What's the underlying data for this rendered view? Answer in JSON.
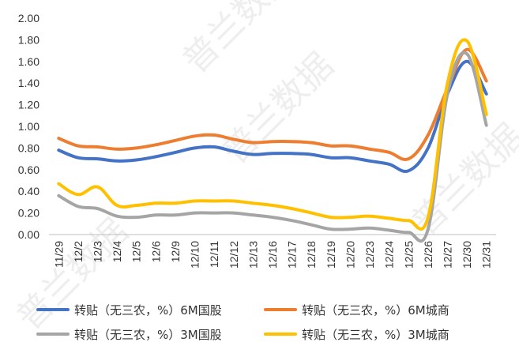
{
  "chart_data": {
    "type": "line",
    "title": "",
    "xlabel": "",
    "ylabel": "",
    "ylim": [
      0,
      2.0
    ],
    "ytick_step": 0.2,
    "grid": false,
    "legend_position": "bottom",
    "categories": [
      "11/29",
      "12/2",
      "12/3",
      "12/4",
      "12/5",
      "12/6",
      "12/9",
      "12/10",
      "12/11",
      "12/12",
      "12/13",
      "12/16",
      "12/17",
      "12/18",
      "12/19",
      "12/20",
      "12/23",
      "12/24",
      "12/25",
      "12/26",
      "12/27",
      "12/30",
      "12/31"
    ],
    "series": [
      {
        "name": "转贴（无三农，%）6M国股",
        "color": "#4472c4",
        "values": [
          0.78,
          0.71,
          0.7,
          0.68,
          0.69,
          0.72,
          0.76,
          0.8,
          0.81,
          0.77,
          0.74,
          0.75,
          0.75,
          0.74,
          0.71,
          0.71,
          0.68,
          0.65,
          0.59,
          0.8,
          1.3,
          1.6,
          1.3
        ]
      },
      {
        "name": "转贴（无三农，%）6M城商",
        "color": "#ed7d31",
        "values": [
          0.89,
          0.82,
          0.81,
          0.79,
          0.8,
          0.83,
          0.87,
          0.91,
          0.92,
          0.88,
          0.85,
          0.86,
          0.86,
          0.85,
          0.82,
          0.82,
          0.79,
          0.76,
          0.7,
          0.92,
          1.35,
          1.71,
          1.42
        ]
      },
      {
        "name": "转贴（无三农，%）3M国股",
        "color": "#a5a5a5",
        "values": [
          0.36,
          0.26,
          0.24,
          0.17,
          0.16,
          0.18,
          0.18,
          0.2,
          0.2,
          0.2,
          0.18,
          0.16,
          0.13,
          0.09,
          0.05,
          0.05,
          0.06,
          0.04,
          0.02,
          0.05,
          1.3,
          1.67,
          1.01
        ]
      },
      {
        "name": "转贴（无三农，%）3M城商",
        "color": "#ffc000",
        "values": [
          0.47,
          0.37,
          0.44,
          0.27,
          0.27,
          0.29,
          0.29,
          0.31,
          0.31,
          0.31,
          0.29,
          0.27,
          0.24,
          0.2,
          0.16,
          0.16,
          0.17,
          0.15,
          0.13,
          0.16,
          1.4,
          1.79,
          1.11
        ]
      }
    ]
  },
  "watermark_text": "普兰数据"
}
